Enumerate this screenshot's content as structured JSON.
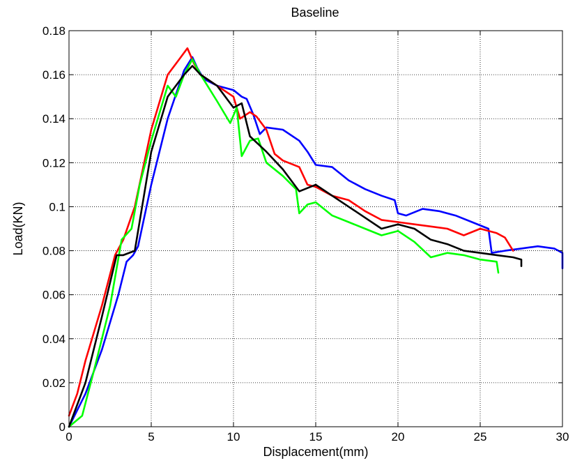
{
  "chart_data": {
    "type": "line",
    "title": "Baseline",
    "xlabel": "Displacement(mm)",
    "ylabel": "Load(KN)",
    "xlim": [
      0,
      30
    ],
    "ylim": [
      0,
      0.18
    ],
    "xticks": [
      0,
      5,
      10,
      15,
      20,
      25,
      30
    ],
    "xtick_labels": [
      "0",
      "5",
      "10",
      "15",
      "20",
      "25",
      "30"
    ],
    "yticks": [
      0,
      0.02,
      0.04,
      0.06,
      0.08,
      0.1,
      0.12,
      0.14,
      0.16,
      0.18
    ],
    "ytick_labels": [
      "0",
      "0.02",
      "0.04",
      "0.06",
      "0.08",
      "0.1",
      "0.12",
      "0.14",
      "0.16",
      "0.18"
    ],
    "grid": true,
    "legend": "none",
    "series": [
      {
        "color": "#0000ff",
        "x": [
          0.0,
          1.0,
          2.0,
          3.0,
          3.5,
          3.9,
          4.2,
          5.0,
          6.0,
          7.0,
          7.5,
          7.8,
          8.2,
          9.0,
          10.0,
          10.5,
          10.8,
          11.2,
          11.6,
          12.0,
          13.0,
          14.0,
          14.5,
          15.0,
          16.0,
          17.0,
          18.0,
          19.0,
          19.8,
          20.0,
          20.5,
          21.5,
          22.5,
          23.5,
          24.5,
          25.5,
          25.7,
          26.5,
          27.5,
          28.5,
          29.5,
          30.0,
          30.0
        ],
        "y": [
          0.0,
          0.015,
          0.035,
          0.06,
          0.075,
          0.078,
          0.082,
          0.11,
          0.14,
          0.162,
          0.168,
          0.163,
          0.158,
          0.155,
          0.153,
          0.15,
          0.149,
          0.142,
          0.133,
          0.136,
          0.135,
          0.13,
          0.125,
          0.119,
          0.118,
          0.112,
          0.108,
          0.105,
          0.103,
          0.097,
          0.096,
          0.099,
          0.098,
          0.096,
          0.093,
          0.09,
          0.079,
          0.08,
          0.081,
          0.082,
          0.081,
          0.079,
          0.072
        ]
      },
      {
        "color": "#ff0000",
        "x": [
          0.0,
          0.5,
          1.0,
          2.0,
          2.8,
          3.3,
          4.0,
          5.0,
          6.0,
          6.8,
          7.2,
          7.6,
          8.0,
          9.0,
          10.0,
          10.4,
          11.0,
          11.4,
          12.0,
          12.5,
          13.0,
          14.0,
          14.5,
          15.0,
          16.0,
          17.0,
          18.0,
          19.0,
          20.0,
          21.0,
          22.0,
          23.0,
          24.0,
          25.0,
          26.0,
          26.5,
          27.0
        ],
        "y": [
          0.005,
          0.015,
          0.03,
          0.055,
          0.078,
          0.085,
          0.1,
          0.135,
          0.16,
          0.168,
          0.172,
          0.165,
          0.16,
          0.155,
          0.15,
          0.14,
          0.143,
          0.141,
          0.135,
          0.124,
          0.121,
          0.118,
          0.11,
          0.109,
          0.105,
          0.103,
          0.098,
          0.094,
          0.093,
          0.092,
          0.091,
          0.09,
          0.087,
          0.09,
          0.088,
          0.086,
          0.08
        ]
      },
      {
        "color": "#00ff00",
        "x": [
          0.0,
          0.8,
          1.5,
          2.5,
          3.2,
          3.8,
          4.3,
          5.0,
          6.0,
          6.5,
          7.0,
          7.5,
          8.0,
          9.0,
          9.8,
          10.2,
          10.5,
          11.0,
          11.5,
          12.0,
          13.0,
          13.8,
          14.0,
          14.5,
          15.0,
          16.0,
          17.0,
          18.0,
          19.0,
          20.0,
          21.0,
          22.0,
          23.0,
          24.0,
          25.0,
          26.0,
          26.1
        ],
        "y": [
          0.0,
          0.005,
          0.025,
          0.055,
          0.085,
          0.09,
          0.11,
          0.13,
          0.155,
          0.15,
          0.16,
          0.167,
          0.16,
          0.148,
          0.138,
          0.145,
          0.123,
          0.13,
          0.131,
          0.12,
          0.114,
          0.108,
          0.097,
          0.101,
          0.102,
          0.096,
          0.093,
          0.09,
          0.087,
          0.089,
          0.084,
          0.077,
          0.079,
          0.078,
          0.076,
          0.075,
          0.07
        ]
      },
      {
        "color": "#000000",
        "x": [
          0.0,
          1.0,
          2.0,
          2.9,
          3.3,
          4.0,
          5.0,
          6.0,
          7.0,
          7.5,
          8.0,
          9.0,
          10.0,
          10.5,
          11.0,
          12.0,
          13.0,
          14.0,
          15.0,
          16.0,
          17.0,
          18.0,
          19.0,
          20.0,
          21.0,
          22.0,
          23.0,
          24.0,
          25.0,
          26.0,
          27.0,
          27.5,
          27.5
        ],
        "y": [
          0.0,
          0.02,
          0.05,
          0.078,
          0.078,
          0.08,
          0.125,
          0.15,
          0.16,
          0.164,
          0.16,
          0.155,
          0.145,
          0.147,
          0.132,
          0.125,
          0.117,
          0.107,
          0.11,
          0.105,
          0.1,
          0.095,
          0.09,
          0.092,
          0.09,
          0.085,
          0.083,
          0.08,
          0.079,
          0.078,
          0.077,
          0.076,
          0.073
        ]
      }
    ]
  }
}
